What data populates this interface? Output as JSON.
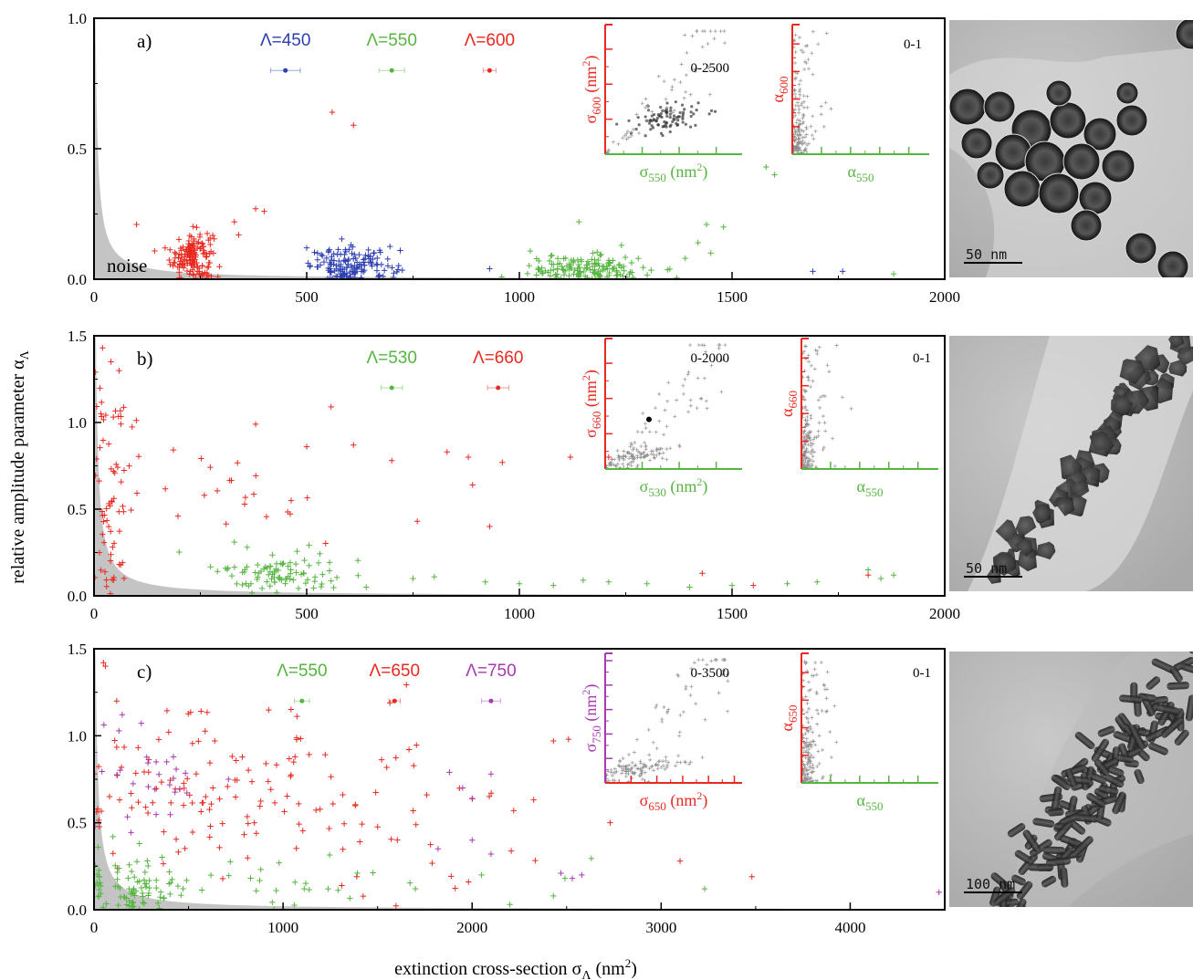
{
  "axes": {
    "ylabel": "relative amplitude parameter α",
    "ylabel_sub": "Λ",
    "xlabel": "extinction cross-section σ",
    "xlabel_sub": "Λ",
    "xlabel_unit": " (nm",
    "xlabel_unit_sup": "2",
    "xlabel_unit_end": ")"
  },
  "noise_label": "noise",
  "colors": {
    "red": "#e8291f",
    "green": "#55b540",
    "blue": "#2b3eb0",
    "purple": "#a63ab0",
    "noise_fill": "#c4c4c4"
  },
  "chart_data": [
    {
      "type": "scatter",
      "panel": "a)",
      "xlim": [
        0,
        2000
      ],
      "ylim": [
        0,
        1.0
      ],
      "xticks": [
        0,
        500,
        1000,
        1500,
        2000
      ],
      "xtick_labels": [
        "0",
        "500",
        "1000",
        "1500",
        "2000"
      ],
      "yticks": [
        0,
        0.5,
        1.0
      ],
      "ytick_labels": [
        "0.0",
        "0.5",
        "1.0"
      ],
      "noise_label": "noise",
      "noise_curve": {
        "a": 5.5,
        "x0": 2
      },
      "wavelength_markers": [
        {
          "label": "Λ=450",
          "color": "blue",
          "x": 450,
          "y": 0.8,
          "err": 35
        },
        {
          "label": "Λ=550",
          "color": "green",
          "x": 700,
          "y": 0.8,
          "err": 30
        },
        {
          "label": "Λ=600",
          "color": "red",
          "x": 930,
          "y": 0.8,
          "err": 15
        }
      ],
      "series": [
        {
          "color": "red",
          "clusters": [
            {
              "cx": 230,
              "cy": 0.09,
              "sx": 25,
              "sy": 0.05,
              "n": 150
            }
          ],
          "extra": [
            [
              380,
              0.27
            ],
            [
              400,
              0.26
            ],
            [
              560,
              0.64
            ],
            [
              610,
              0.59
            ],
            [
              100,
              0.21
            ],
            [
              330,
              0.22
            ],
            [
              340,
              0.17
            ]
          ]
        },
        {
          "color": "blue",
          "clusters": [
            {
              "cx": 610,
              "cy": 0.05,
              "sx": 50,
              "sy": 0.035,
              "n": 150
            }
          ],
          "extra": [
            [
              930,
              0.04
            ],
            [
              1760,
              0.03
            ],
            [
              1690,
              0.03
            ],
            [
              500,
              0.12
            ],
            [
              720,
              0.11
            ]
          ]
        },
        {
          "color": "green",
          "clusters": [
            {
              "cx": 1160,
              "cy": 0.04,
              "sx": 70,
              "sy": 0.025,
              "n": 150
            }
          ],
          "extra": [
            [
              1580,
              0.43
            ],
            [
              1600,
              0.4
            ],
            [
              1440,
              0.21
            ],
            [
              1480,
              0.2
            ],
            [
              1420,
              0.14
            ],
            [
              1450,
              0.1
            ],
            [
              1880,
              0.02
            ],
            [
              1390,
              0.08
            ],
            [
              1140,
              0.22
            ],
            [
              1240,
              0.13
            ]
          ]
        }
      ],
      "insets": [
        {
          "range_label": "0-2500",
          "ylabel": "σ",
          "ylabel_sub": "600",
          "ylabel_unit": " (nm",
          "ylabel_unit_sup": "2",
          "ylabel_unit_end": ")",
          "xlabel": "σ",
          "xlabel_sub": "550",
          "xlabel_unit": " (nm",
          "xlabel_unit_sup": "2",
          "xlabel_unit_end": ")",
          "xcolor": "green",
          "ycolor": "red",
          "cloud": "a-sigma"
        },
        {
          "range_label": "0-1",
          "ylabel": "α",
          "ylabel_sub": "600",
          "xlabel": "α",
          "xlabel_sub": "550",
          "xcolor": "green",
          "ycolor": "red",
          "cloud": "a-alpha"
        }
      ],
      "scale_bar": "50  nm"
    },
    {
      "type": "scatter",
      "panel": "b)",
      "xlim": [
        0,
        2000
      ],
      "ylim": [
        0,
        1.5
      ],
      "xticks": [
        0,
        500,
        1000,
        1500,
        2000
      ],
      "xtick_labels": [
        "0",
        "500",
        "1000",
        "1500",
        "2000"
      ],
      "yticks": [
        0,
        0.5,
        1.0,
        1.5
      ],
      "ytick_labels": [
        "0.0",
        "0.5",
        "1.0",
        "1.5"
      ],
      "noise_curve": {
        "a": 9,
        "x0": 1.5
      },
      "wavelength_markers": [
        {
          "label": "Λ=530",
          "color": "green",
          "x": 700,
          "y": 1.2,
          "err": 25
        },
        {
          "label": "Λ=660",
          "color": "red",
          "x": 950,
          "y": 1.2,
          "err": 25
        }
      ],
      "series": [
        {
          "color": "red",
          "clusters": [
            {
              "cx": 40,
              "cy": 0.6,
              "sx": 25,
              "sy": 0.4,
              "n": 70
            },
            {
              "cx": 350,
              "cy": 0.6,
              "sx": 150,
              "sy": 0.15,
              "n": 25
            }
          ],
          "extra": [
            [
              20,
              1.43
            ],
            [
              40,
              1.35
            ],
            [
              380,
              0.99
            ],
            [
              500,
              0.86
            ],
            [
              610,
              0.87
            ],
            [
              830,
              0.83
            ],
            [
              880,
              0.8
            ],
            [
              960,
              0.77
            ],
            [
              700,
              0.78
            ],
            [
              1120,
              0.8
            ],
            [
              1210,
              0.8
            ],
            [
              1430,
              0.13
            ],
            [
              1820,
              0.12
            ],
            [
              1550,
              0.06
            ],
            [
              930,
              0.4
            ],
            [
              760,
              0.43
            ],
            [
              890,
              0.64
            ]
          ]
        },
        {
          "color": "green",
          "clusters": [
            {
              "cx": 430,
              "cy": 0.13,
              "sx": 70,
              "sy": 0.06,
              "n": 90
            }
          ],
          "extra": [
            [
              750,
              0.1
            ],
            [
              800,
              0.11
            ],
            [
              920,
              0.08
            ],
            [
              1000,
              0.07
            ],
            [
              1080,
              0.06
            ],
            [
              1150,
              0.09
            ],
            [
              1210,
              0.08
            ],
            [
              1300,
              0.07
            ],
            [
              1400,
              0.05
            ],
            [
              1500,
              0.06
            ],
            [
              1630,
              0.07
            ],
            [
              1700,
              0.08
            ],
            [
              1820,
              0.15
            ],
            [
              1880,
              0.12
            ],
            [
              1850,
              0.1
            ],
            [
              640,
              0.05
            ],
            [
              330,
              0.31
            ],
            [
              360,
              0.28
            ]
          ]
        }
      ],
      "insets": [
        {
          "range_label": "0-2000",
          "ylabel": "σ",
          "ylabel_sub": "660",
          "ylabel_unit": " (nm",
          "ylabel_unit_sup": "2",
          "ylabel_unit_end": ")",
          "xlabel": "σ",
          "xlabel_sub": "530",
          "xlabel_unit": " (nm",
          "xlabel_unit_sup": "2",
          "xlabel_unit_end": ")",
          "xcolor": "green",
          "ycolor": "red",
          "cloud": "b-sigma"
        },
        {
          "range_label": "0-1",
          "ylabel": "α",
          "ylabel_sub": "660",
          "xlabel": "α",
          "xlabel_sub": "550",
          "xcolor": "green",
          "ycolor": "red",
          "cloud": "b-alpha"
        }
      ],
      "scale_bar": "50  nm"
    },
    {
      "type": "scatter",
      "panel": "c)",
      "xlim": [
        0,
        4500
      ],
      "ylim": [
        0,
        1.5
      ],
      "xticks": [
        0,
        1000,
        2000,
        3000,
        4000
      ],
      "xtick_labels": [
        "0",
        "1000",
        "2000",
        "3000",
        "4000"
      ],
      "yticks": [
        0,
        0.5,
        1.0,
        1.5
      ],
      "ytick_labels": [
        "0.0",
        "0.5",
        "1.0",
        "1.5"
      ],
      "noise_curve": {
        "a": 20,
        "x0": 5
      },
      "wavelength_markers": [
        {
          "label": "Λ=550",
          "color": "green",
          "x": 1100,
          "y": 1.2,
          "err": 40
        },
        {
          "label": "Λ=650",
          "color": "red",
          "x": 1590,
          "y": 1.2,
          "err": 30
        },
        {
          "label": "Λ=750",
          "color": "purple",
          "x": 2100,
          "y": 1.2,
          "err": 50
        }
      ],
      "series": [
        {
          "color": "red",
          "clusters": [
            {
              "cx": 600,
              "cy": 0.72,
              "sx": 350,
              "sy": 0.22,
              "n": 110
            },
            {
              "cx": 1600,
              "cy": 0.55,
              "sx": 450,
              "sy": 0.25,
              "n": 45
            }
          ],
          "extra": [
            [
              50,
              1.42
            ],
            [
              60,
              1.4
            ],
            [
              120,
              1.2
            ],
            [
              2430,
              0.97
            ],
            [
              2510,
              0.98
            ],
            [
              3100,
              0.28
            ],
            [
              3480,
              0.19
            ],
            [
              2220,
              0.57
            ],
            [
              2730,
              0.5
            ]
          ]
        },
        {
          "color": "green",
          "clusters": [
            {
              "cx": 200,
              "cy": 0.15,
              "sx": 150,
              "sy": 0.09,
              "n": 80
            },
            {
              "cx": 900,
              "cy": 0.15,
              "sx": 500,
              "sy": 0.07,
              "n": 35
            }
          ],
          "extra": [
            [
              3230,
              0.12
            ],
            [
              2200,
              0.03
            ],
            [
              2050,
              0.2
            ],
            [
              1700,
              0.12
            ],
            [
              100,
              0.42
            ],
            [
              240,
              0.38
            ]
          ]
        },
        {
          "color": "purple",
          "clusters": [
            {
              "cx": 300,
              "cy": 0.82,
              "sx": 180,
              "sy": 0.18,
              "n": 30
            }
          ],
          "extra": [
            [
              4470,
              0.1
            ],
            [
              2580,
              0.2
            ],
            [
              2470,
              0.21
            ],
            [
              2530,
              0.18
            ],
            [
              2100,
              0.78
            ],
            [
              1880,
              0.79
            ],
            [
              1950,
              0.7
            ],
            [
              2000,
              0.64
            ],
            [
              1820,
              0.35
            ],
            [
              2100,
              0.32
            ],
            [
              2000,
              0.4
            ]
          ]
        }
      ],
      "insets": [
        {
          "range_label": "0-3500",
          "ylabel": "σ",
          "ylabel_sub": "750",
          "ylabel_unit": " (nm",
          "ylabel_unit_sup": "2",
          "ylabel_unit_end": ")",
          "xlabel": "σ",
          "xlabel_sub": "650",
          "xlabel_unit": " (nm",
          "xlabel_unit_sup": "2",
          "xlabel_unit_end": ")",
          "xcolor": "red",
          "ycolor": "purple",
          "cloud": "c-sigma"
        },
        {
          "range_label": "0-1",
          "ylabel": "α",
          "ylabel_sub": "650",
          "xlabel": "α",
          "xlabel_sub": "550",
          "xcolor": "green",
          "ycolor": "red",
          "cloud": "c-alpha"
        }
      ],
      "scale_bar": "100  nm"
    }
  ]
}
